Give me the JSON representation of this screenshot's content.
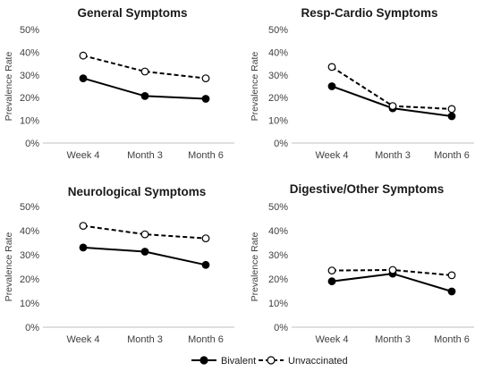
{
  "legend": {
    "bivalent_label": "Bivalent",
    "unvaccinated_label": "Unvaccinated"
  },
  "chart_data": [
    {
      "type": "line",
      "title": "General Symptoms",
      "ylabel": "Prevalence Rate",
      "categories": [
        "Week 4",
        "Month 3",
        "Month 6"
      ],
      "yticks": [
        "0%",
        "10%",
        "20%",
        "30%",
        "40%",
        "50%"
      ],
      "ylim": [
        0,
        50
      ],
      "series": [
        {
          "name": "Bivalent",
          "style": "solid",
          "marker": "filled",
          "values": [
            28.5,
            20.7,
            19.5
          ]
        },
        {
          "name": "Unvaccinated",
          "style": "dashed",
          "marker": "open",
          "values": [
            38.5,
            31.5,
            28.5
          ]
        }
      ]
    },
    {
      "type": "line",
      "title": "Resp-Cardio Symptoms",
      "ylabel": "Prevalence Rate",
      "categories": [
        "Week 4",
        "Month 3",
        "Month 6"
      ],
      "yticks": [
        "0%",
        "10%",
        "20%",
        "30%",
        "40%",
        "50%"
      ],
      "ylim": [
        0,
        50
      ],
      "series": [
        {
          "name": "Bivalent",
          "style": "solid",
          "marker": "filled",
          "values": [
            25,
            15.3,
            11.8
          ]
        },
        {
          "name": "Unvaccinated",
          "style": "dashed",
          "marker": "open",
          "values": [
            33.5,
            16.3,
            15
          ]
        }
      ]
    },
    {
      "type": "line",
      "title": "Neurological Symptoms",
      "ylabel": "Prevalence Rate",
      "categories": [
        "Week 4",
        "Month 3",
        "Month 6"
      ],
      "yticks": [
        "0%",
        "10%",
        "20%",
        "30%",
        "40%",
        "50%"
      ],
      "ylim": [
        0,
        50
      ],
      "series": [
        {
          "name": "Bivalent",
          "style": "solid",
          "marker": "filled",
          "values": [
            33,
            31.3,
            25.8
          ]
        },
        {
          "name": "Unvaccinated",
          "style": "dashed",
          "marker": "open",
          "values": [
            42,
            38.5,
            36.8
          ]
        }
      ]
    },
    {
      "type": "line",
      "title": "Digestive/Other Symptoms",
      "ylabel": "Prevalence Rate",
      "categories": [
        "Week 4",
        "Month 3",
        "Month 6"
      ],
      "yticks": [
        "0%",
        "10%",
        "20%",
        "30%",
        "40%",
        "50%"
      ],
      "ylim": [
        0,
        50
      ],
      "series": [
        {
          "name": "Bivalent",
          "style": "solid",
          "marker": "filled",
          "values": [
            19,
            22.2,
            14.8
          ]
        },
        {
          "name": "Unvaccinated",
          "style": "dashed",
          "marker": "open",
          "values": [
            23.5,
            23.7,
            21.5
          ]
        }
      ]
    }
  ]
}
